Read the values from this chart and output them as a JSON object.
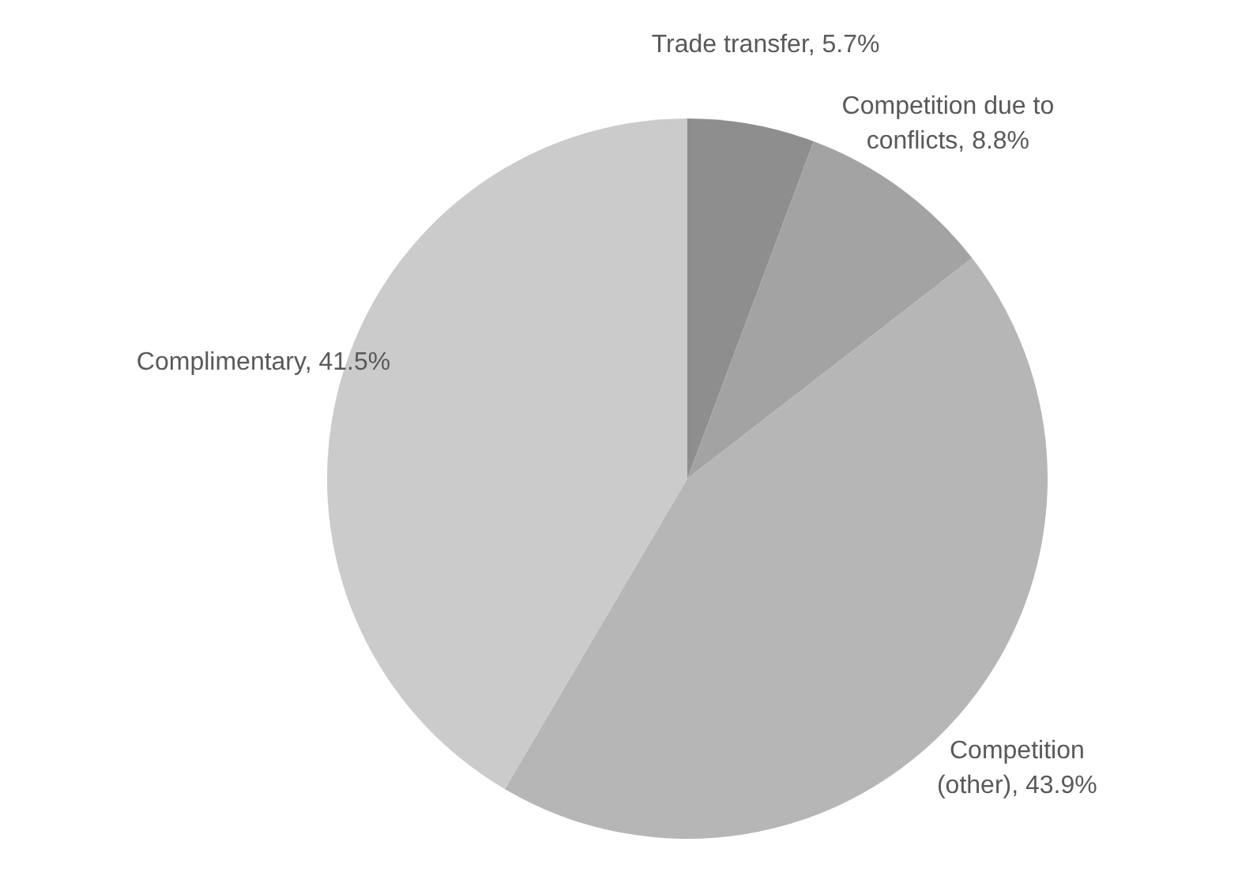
{
  "chart_data": {
    "type": "pie",
    "categories": [
      "Trade transfer",
      "Competition due to conflicts",
      "Competition (other)",
      "Complimentary"
    ],
    "values": [
      5.7,
      8.8,
      43.9,
      41.5
    ],
    "value_labels": [
      "5.7%",
      "8.8%",
      "43.9%",
      "41.5%"
    ],
    "colors": [
      "#8e8e8e",
      "#a3a3a3",
      "#b6b6b6",
      "#cbcbcb"
    ],
    "legend": false
  }
}
